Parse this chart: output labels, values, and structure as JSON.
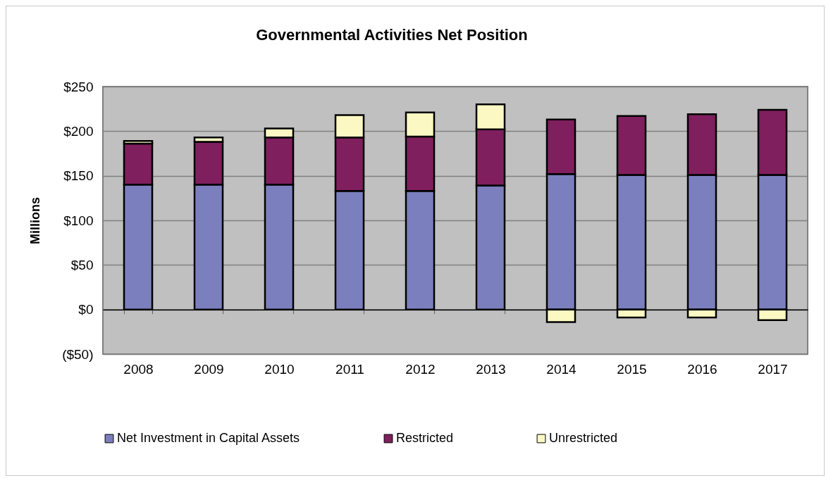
{
  "chart_data": {
    "type": "bar",
    "title": "Governmental Activities Net Position",
    "ylabel": "Millions",
    "categories": [
      "2008",
      "2009",
      "2010",
      "2011",
      "2012",
      "2013",
      "2014",
      "2015",
      "2016",
      "2017"
    ],
    "stacked": true,
    "series": [
      {
        "name": "Net Investment in Capital Assets",
        "color": "#7b7fbd",
        "values": [
          140,
          140,
          140,
          133,
          133,
          139,
          152,
          151,
          151,
          151
        ]
      },
      {
        "name": "Restricted",
        "color": "#7f1f5e",
        "values": [
          46,
          48,
          53,
          60,
          61,
          63,
          61,
          66,
          68,
          73
        ]
      },
      {
        "name": "Unrestricted",
        "color": "#fbf8c3",
        "values": [
          3,
          5,
          10,
          25,
          27,
          28,
          -14,
          -9,
          -9,
          -12
        ]
      }
    ],
    "ylim": [
      -50,
      250
    ],
    "yticks": [
      {
        "value": -50,
        "label": "($50)"
      },
      {
        "value": 0,
        "label": "$0"
      },
      {
        "value": 50,
        "label": "$50"
      },
      {
        "value": 100,
        "label": "$100"
      },
      {
        "value": 150,
        "label": "$150"
      },
      {
        "value": 200,
        "label": "$200"
      },
      {
        "value": 250,
        "label": "$250"
      }
    ],
    "grid": "y",
    "legend": "bottom"
  }
}
